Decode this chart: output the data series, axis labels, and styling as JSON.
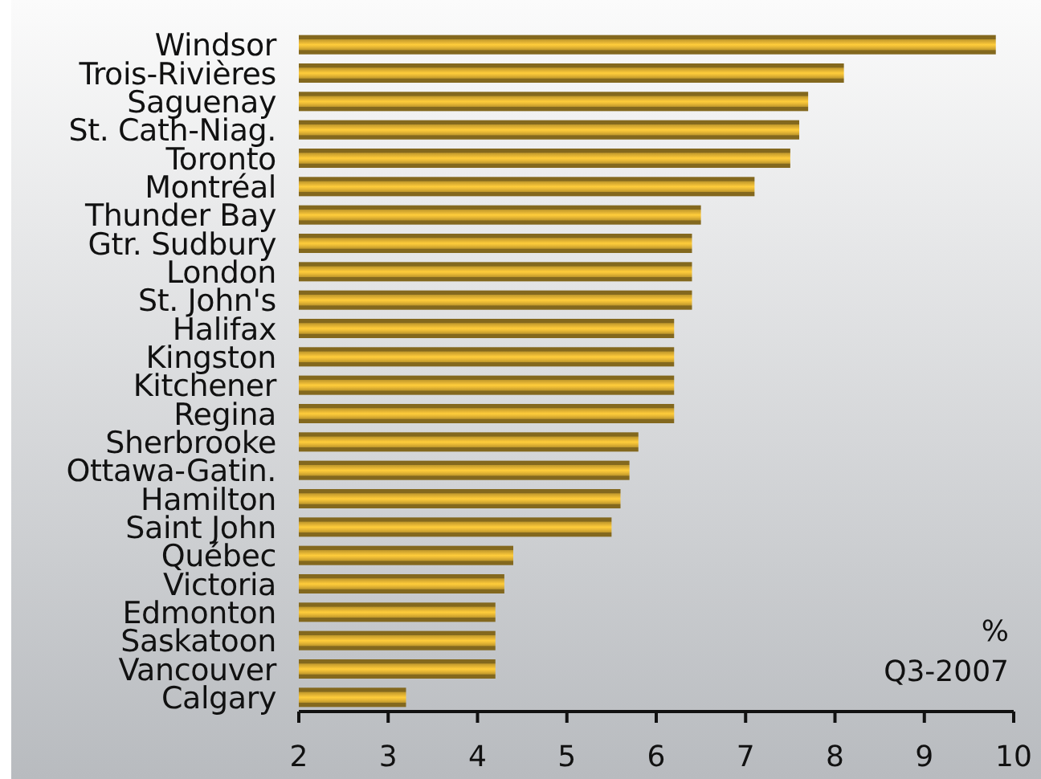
{
  "chart_data": {
    "type": "bar",
    "orientation": "horizontal",
    "categories": [
      "Windsor",
      "Trois-Rivières",
      "Saguenay",
      "St. Cath-Niag.",
      "Toronto",
      "Montréal",
      "Thunder Bay",
      "Gtr. Sudbury",
      "London",
      "St. John's",
      "Halifax",
      "Kingston",
      "Kitchener",
      "Regina",
      "Sherbrooke",
      "Ottawa-Gatin.",
      "Hamilton",
      "Saint John",
      "Québec",
      "Victoria",
      "Edmonton",
      "Saskatoon",
      "Vancouver",
      "Calgary"
    ],
    "values": [
      9.8,
      8.1,
      7.7,
      7.6,
      7.5,
      7.1,
      6.5,
      6.4,
      6.4,
      6.4,
      6.2,
      6.2,
      6.2,
      6.2,
      5.8,
      5.7,
      5.6,
      5.5,
      4.4,
      4.3,
      4.2,
      4.2,
      4.2,
      3.2
    ],
    "color": "#e8b835",
    "xlim": [
      2,
      10
    ],
    "xticks": [
      2,
      3,
      4,
      5,
      6,
      7,
      8,
      9,
      10
    ],
    "annotations": [
      "%",
      "Q3-2007"
    ]
  }
}
